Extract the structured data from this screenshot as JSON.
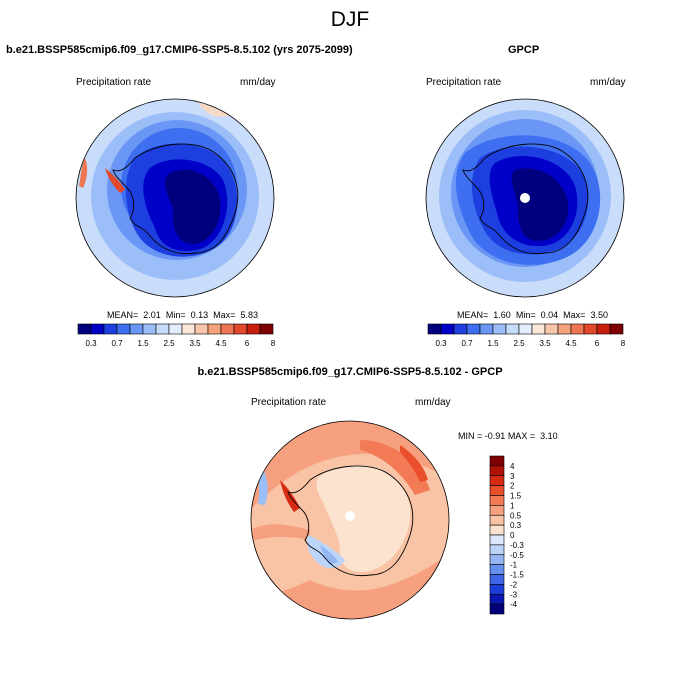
{
  "title": "DJF",
  "panels": [
    {
      "title": "b.e21.BSSP585cmip6.f09_g17.CMIP6-SSP5-8.5.102 (yrs 2075-2099)",
      "variable": "Precipitation rate",
      "units": "mm/day",
      "stats": {
        "mean_label": "MEAN=",
        "mean": "2.01",
        "min_label": "Min=",
        "min": "0.13",
        "max_label": "Max=",
        "max": "5.83"
      }
    },
    {
      "title": "GPCP",
      "variable": "Precipitation rate",
      "units": "mm/day",
      "stats": {
        "mean_label": "MEAN=",
        "mean": "1.60",
        "min_label": "Min=",
        "min": "0.04",
        "max_label": "Max=",
        "max": "3.50"
      }
    },
    {
      "title": "b.e21.BSSP585cmip6.f09_g17.CMIP6-SSP5-8.5.102 - GPCP",
      "variable": "Precipitation rate",
      "units": "mm/day",
      "stats": {
        "min_label": "MIN =",
        "min": "-0.91",
        "max_label": "MAX =",
        "max": "3.10"
      }
    }
  ],
  "colorbar_abs": {
    "labels": [
      "0.3",
      "0.7",
      "1.5",
      "2.5",
      "3.5",
      "4.5",
      "6",
      "8"
    ],
    "colors": [
      "#00007f",
      "#0000c8",
      "#1d3fe0",
      "#3e6ff0",
      "#6a96f5",
      "#9cbef8",
      "#c6dcfb",
      "#e3eefc",
      "#fbe7d8",
      "#f8c7ab",
      "#f4a27c",
      "#ee7652",
      "#e2482c",
      "#c81e0d",
      "#7f0000"
    ]
  },
  "colorbar_diff": {
    "labels": [
      "4",
      "3",
      "2",
      "1.5",
      "1",
      "0.5",
      "0.3",
      "0",
      "-0.3",
      "-0.5",
      "-1",
      "-1.5",
      "-2",
      "-3",
      "-4"
    ],
    "colors": [
      "#7f0000",
      "#b01207",
      "#d72a12",
      "#ea4f2c",
      "#f27a55",
      "#f7a07f",
      "#f9c3a6",
      "#fce3d0",
      "#dbe8fb",
      "#bcd4f8",
      "#94b7f4",
      "#6890ef",
      "#3f66e6",
      "#1d3ed6",
      "#0a16b0",
      "#00007f"
    ]
  }
}
